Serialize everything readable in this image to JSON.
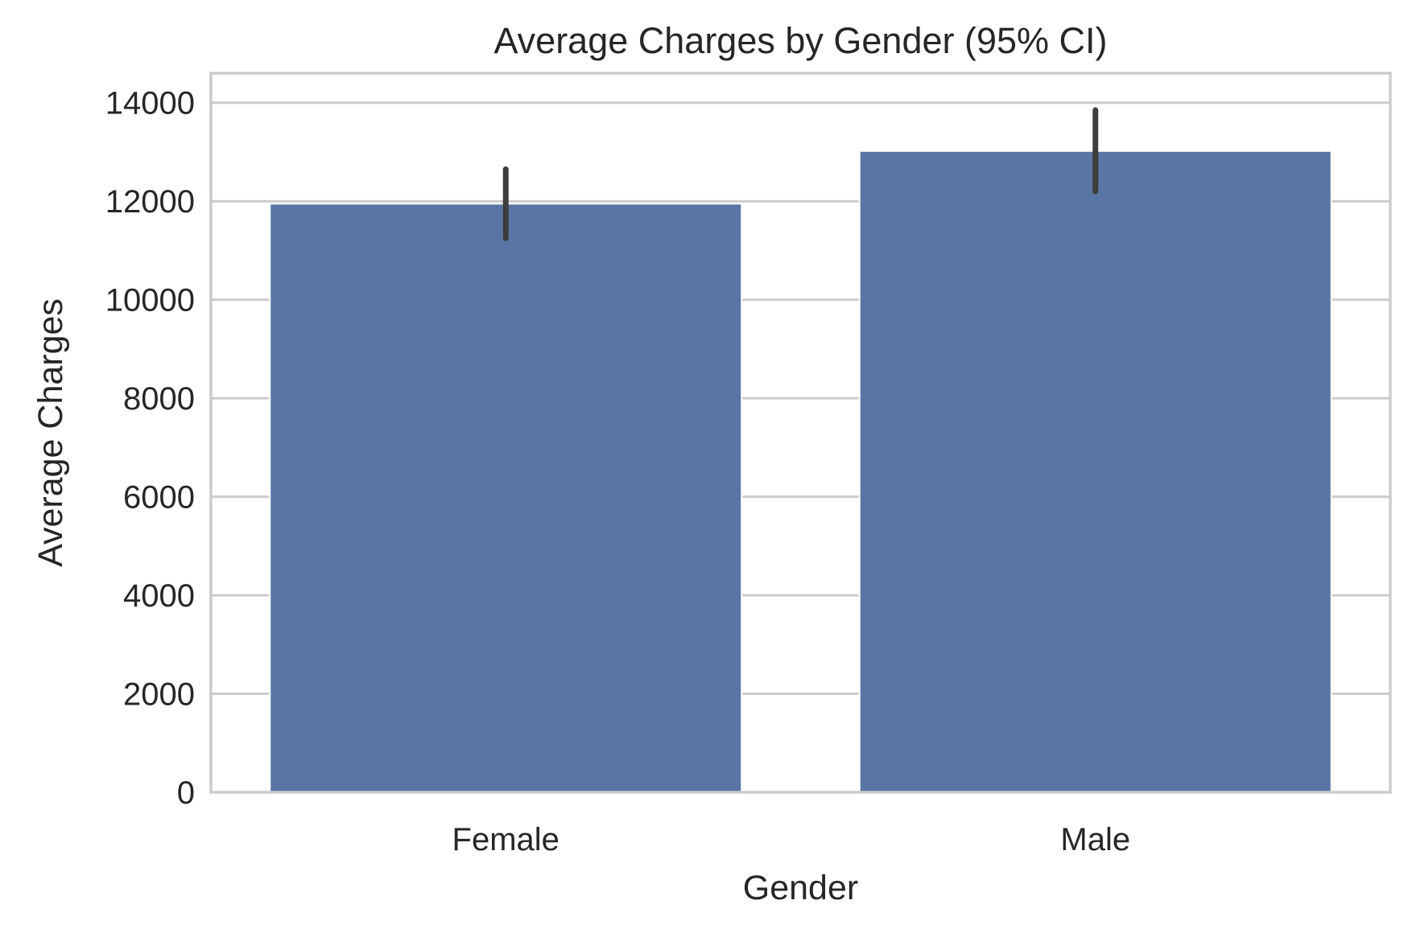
{
  "chart_data": {
    "type": "bar",
    "title": "Average Charges by Gender (95% CI)",
    "xlabel": "Gender",
    "ylabel": "Average Charges",
    "categories": [
      "Female",
      "Male"
    ],
    "values": [
      11950,
      13020
    ],
    "ci_low": [
      11250,
      12200
    ],
    "ci_high": [
      12650,
      13850
    ],
    "ylim": [
      0,
      14600
    ],
    "yticks": [
      0,
      2000,
      4000,
      6000,
      8000,
      10000,
      12000,
      14000
    ],
    "ytick_labels": [
      "0",
      "2000",
      "4000",
      "6000",
      "8000",
      "10000",
      "12000",
      "14000"
    ],
    "grid": "horizontal",
    "bar_color": "#5975a4",
    "errorbar_color": "#3d3d3d",
    "grid_color": "#cccccc"
  }
}
